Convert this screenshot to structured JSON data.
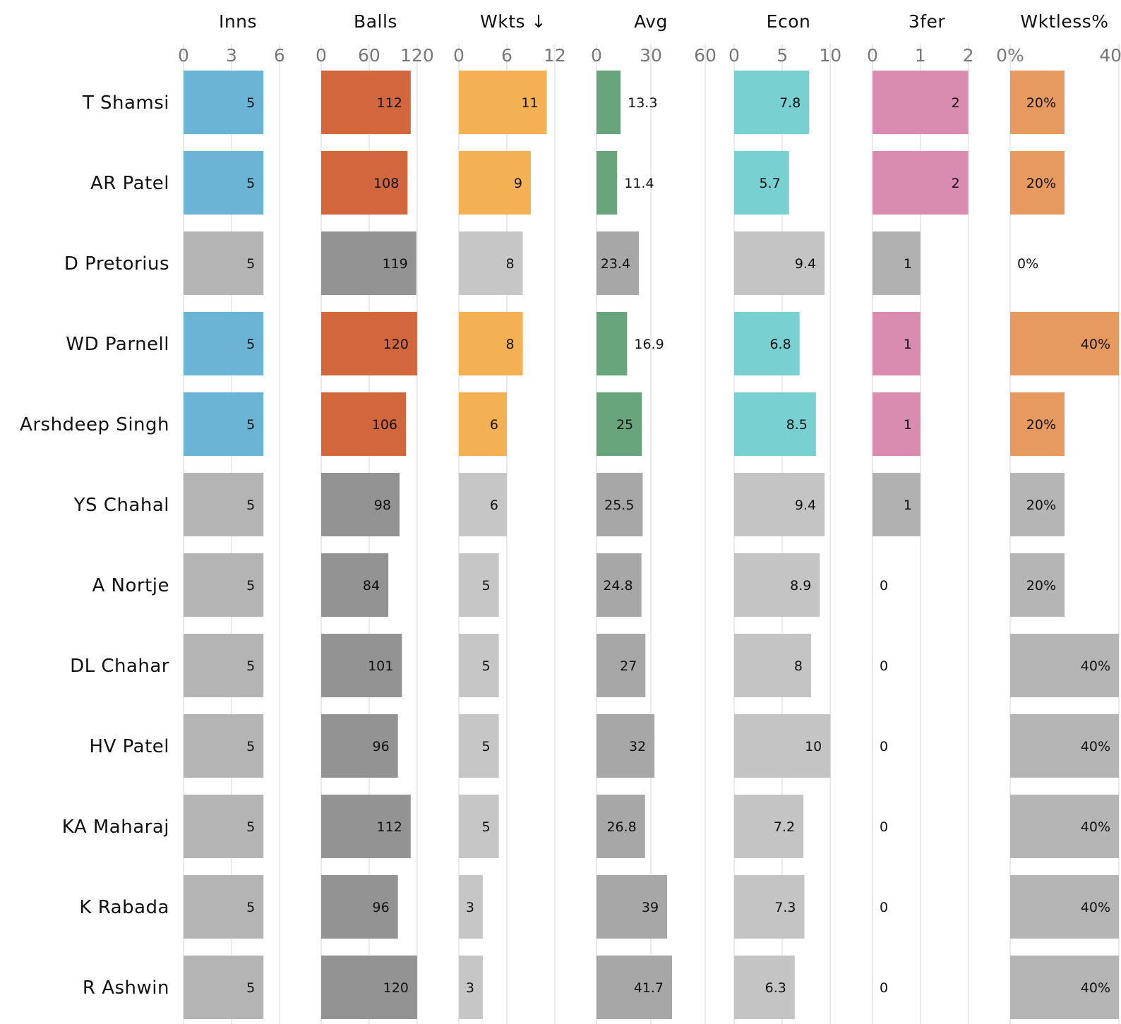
{
  "chart_data": {
    "type": "bar",
    "orientation": "horizontal",
    "layout": "small-multiples",
    "categories": [
      "T Shamsi",
      "AR Patel",
      "D Pretorius",
      "WD Parnell",
      "Arshdeep Singh",
      "YS Chahal",
      "A Nortje",
      "DL Chahar",
      "HV Patel",
      "KA Maharaj",
      "K Rabada",
      "R Ashwin"
    ],
    "highlighted": [
      true,
      true,
      false,
      true,
      true,
      false,
      false,
      false,
      false,
      false,
      false,
      false
    ],
    "grid": true,
    "series": [
      {
        "name": "Inns",
        "values": [
          5,
          5,
          5,
          5,
          5,
          5,
          5,
          5,
          5,
          5,
          5,
          5
        ],
        "labels": [
          "5",
          "5",
          "5",
          "5",
          "5",
          "5",
          "5",
          "5",
          "5",
          "5",
          "5",
          "5"
        ],
        "xlim": [
          0,
          6.8
        ],
        "ticks": [
          0,
          3,
          6
        ],
        "tick_labels": [
          "0",
          "3",
          "6"
        ],
        "color": "#6cb4d6",
        "gray": "#b4b4b4"
      },
      {
        "name": "Balls",
        "values": [
          112,
          108,
          119,
          120,
          106,
          98,
          84,
          101,
          96,
          112,
          96,
          120
        ],
        "labels": [
          "112",
          "108",
          "119",
          "120",
          "106",
          "98",
          "84",
          "101",
          "96",
          "112",
          "96",
          "120"
        ],
        "xlim": [
          0,
          136
        ],
        "ticks": [
          0,
          60,
          120
        ],
        "tick_labels": [
          "0",
          "60",
          "120"
        ],
        "color": "#d2673e",
        "gray": "#939393"
      },
      {
        "name": "Wkts ↓",
        "values": [
          11,
          9,
          8,
          8,
          6,
          6,
          5,
          5,
          5,
          5,
          3,
          3
        ],
        "labels": [
          "11",
          "9",
          "8",
          "8",
          "6",
          "6",
          "5",
          "5",
          "5",
          "5",
          "3",
          "3"
        ],
        "xlim": [
          0,
          13.6
        ],
        "ticks": [
          0,
          6,
          12
        ],
        "tick_labels": [
          "0",
          "6",
          "12"
        ],
        "color": "#f3b154",
        "gray": "#c6c6c6"
      },
      {
        "name": "Avg",
        "values": [
          13.3,
          11.4,
          23.4,
          16.9,
          25,
          25.5,
          24.8,
          27,
          32,
          26.8,
          39,
          41.7
        ],
        "labels": [
          "13.3",
          "11.4",
          "23.4",
          "16.9",
          "25",
          "25.5",
          "24.8",
          "27",
          "32",
          "26.8",
          "39",
          "41.7"
        ],
        "xlim": [
          0,
          60
        ],
        "ticks": [
          0,
          30,
          60
        ],
        "tick_labels": [
          "0",
          "30",
          "60"
        ],
        "color": "#68a57d",
        "gray": "#a7a7a7"
      },
      {
        "name": "Econ",
        "values": [
          7.8,
          5.7,
          9.4,
          6.8,
          8.5,
          9.4,
          8.9,
          8,
          10,
          7.2,
          7.3,
          6.3
        ],
        "labels": [
          "7.8",
          "5.7",
          "9.4",
          "6.8",
          "8.5",
          "9.4",
          "8.9",
          "8",
          "10",
          "7.2",
          "7.3",
          "6.3"
        ],
        "xlim": [
          0,
          11.3
        ],
        "ticks": [
          0,
          5,
          10
        ],
        "tick_labels": [
          "0",
          "5",
          "10"
        ],
        "color": "#78d0d0",
        "gray": "#c4c4c4"
      },
      {
        "name": "3fer",
        "values": [
          2,
          2,
          1,
          1,
          1,
          1,
          0,
          0,
          0,
          0,
          0,
          0
        ],
        "labels": [
          "2",
          "2",
          "1",
          "1",
          "1",
          "1",
          "0",
          "0",
          "0",
          "0",
          "0",
          "0"
        ],
        "xlim": [
          0,
          2.27
        ],
        "ticks": [
          0,
          1,
          2
        ],
        "tick_labels": [
          "0",
          "1",
          "2"
        ],
        "color": "#d98bb0",
        "gray": "#b1b1b1"
      },
      {
        "name": "Wktless%",
        "values": [
          20,
          20,
          0,
          40,
          20,
          20,
          20,
          40,
          40,
          40,
          40,
          40
        ],
        "labels": [
          "20%",
          "20%",
          "0%",
          "40%",
          "20%",
          "20%",
          "20%",
          "40%",
          "40%",
          "40%",
          "40%",
          "40%"
        ],
        "xlim": [
          0,
          40
        ],
        "ticks": [
          0,
          40
        ],
        "tick_labels": [
          "0%",
          "40%"
        ],
        "color": "#e79a5f",
        "gray": "#b5b5b5"
      }
    ]
  }
}
